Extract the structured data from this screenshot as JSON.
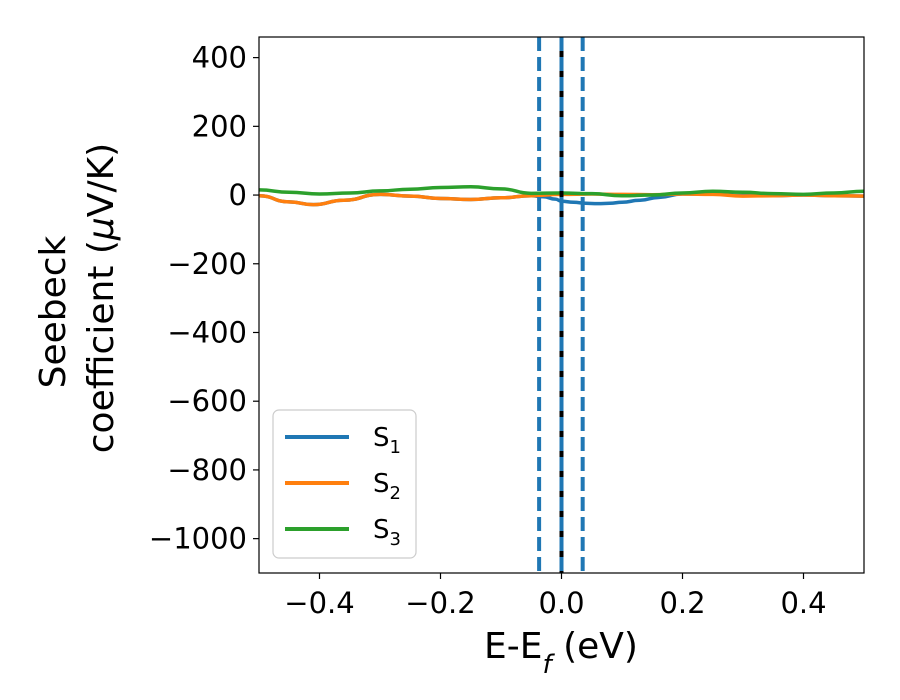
{
  "chart_data": {
    "type": "line",
    "title": "",
    "xlabel": "E-E_f (eV)",
    "ylabel": "Seebeck coefficient (μV/K)",
    "ylabel_line1": "Seebeck",
    "ylabel_line2": "coefficient (μV/K)",
    "xlim": [
      -0.5,
      0.5
    ],
    "ylim": [
      -1100,
      460
    ],
    "x_ticks": [
      -0.4,
      -0.2,
      0.0,
      0.2,
      0.4
    ],
    "x_tick_labels": [
      "−0.4",
      "−0.2",
      "0.0",
      "0.2",
      "0.4"
    ],
    "y_ticks": [
      400,
      200,
      0,
      -200,
      -400,
      -600,
      -800,
      -1000
    ],
    "y_tick_labels": [
      "400",
      "200",
      "0",
      "−200",
      "−400",
      "−600",
      "−800",
      "−1000"
    ],
    "grid": false,
    "legend_position": "lower-left",
    "series": [
      {
        "name": "S1",
        "label_main": "S",
        "label_sub": "1",
        "color": "#1f77b4",
        "x": [
          -0.5,
          -0.45,
          -0.41,
          -0.36,
          -0.3,
          -0.25,
          -0.2,
          -0.15,
          -0.1,
          -0.05,
          -0.03,
          -0.01,
          0.0,
          0.02,
          0.04,
          0.06,
          0.08,
          0.1,
          0.13,
          0.16,
          0.2,
          0.25,
          0.3,
          0.35,
          0.4,
          0.45,
          0.5
        ],
        "y": [
          -2,
          -20,
          -28,
          -15,
          2,
          -3,
          -10,
          -13,
          -8,
          -2,
          -5,
          -12,
          -18,
          -21,
          -24,
          -25,
          -24,
          -21,
          -15,
          -7,
          3,
          3,
          -2,
          -2,
          0,
          -2,
          -3
        ]
      },
      {
        "name": "S2",
        "label_main": "S",
        "label_sub": "2",
        "color": "#ff7f0e",
        "x": [
          -0.5,
          -0.45,
          -0.41,
          -0.36,
          -0.3,
          -0.25,
          -0.2,
          -0.15,
          -0.1,
          -0.05,
          0.0,
          0.05,
          0.1,
          0.15,
          0.2,
          0.25,
          0.3,
          0.35,
          0.4,
          0.45,
          0.5
        ],
        "y": [
          -2,
          -20,
          -28,
          -15,
          2,
          -3,
          -10,
          -13,
          -8,
          -2,
          2,
          3,
          2,
          1,
          3,
          2,
          -3,
          -2,
          0,
          -2,
          -3
        ]
      },
      {
        "name": "S3",
        "label_main": "S",
        "label_sub": "3",
        "color": "#2ca02c",
        "x": [
          -0.5,
          -0.45,
          -0.4,
          -0.35,
          -0.3,
          -0.25,
          -0.2,
          -0.15,
          -0.1,
          -0.05,
          0.0,
          0.05,
          0.1,
          0.15,
          0.2,
          0.25,
          0.3,
          0.35,
          0.4,
          0.45,
          0.5
        ],
        "y": [
          15,
          8,
          3,
          6,
          12,
          17,
          22,
          24,
          18,
          5,
          6,
          4,
          -2,
          0,
          6,
          11,
          8,
          4,
          2,
          6,
          11
        ]
      }
    ],
    "vertical_lines": [
      {
        "x": 0.0,
        "color": "#000000",
        "style": "solid"
      },
      {
        "x": -0.037,
        "color": "#1f77b4",
        "style": "dashed"
      },
      {
        "x": 0.0,
        "color": "#1f77b4",
        "style": "dashed"
      },
      {
        "x": 0.035,
        "color": "#1f77b4",
        "style": "dashed"
      }
    ]
  }
}
